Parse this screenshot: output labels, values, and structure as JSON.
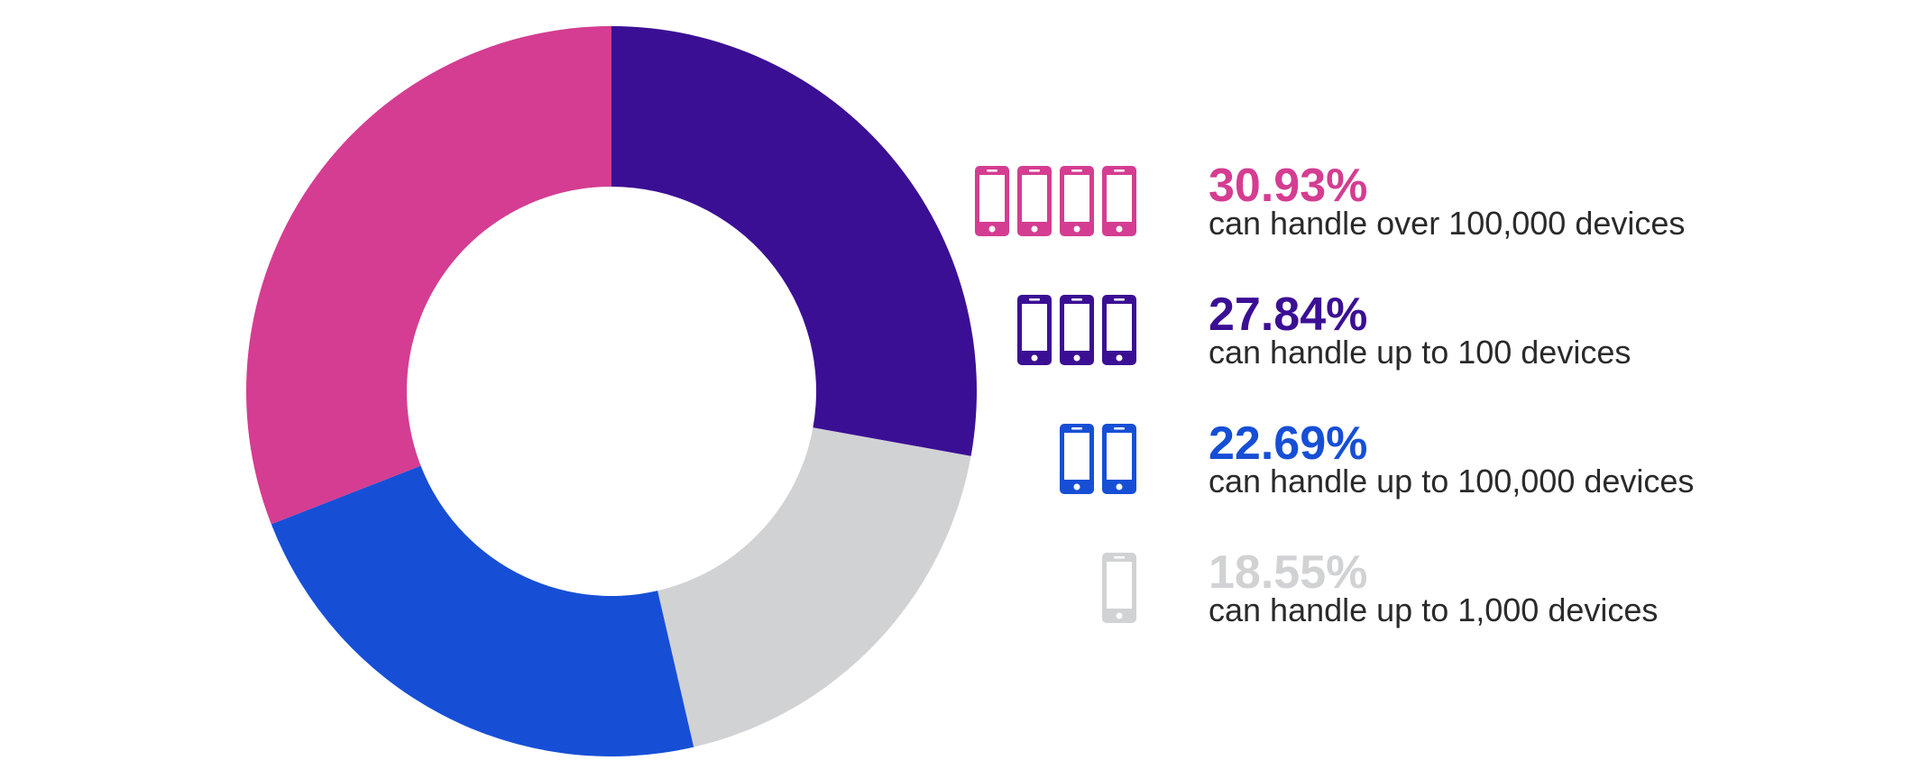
{
  "chart_data": {
    "type": "pie",
    "donut": true,
    "start_angle_deg": 0,
    "direction": "clockwise",
    "slices": [
      {
        "label": "can handle up to 100 devices",
        "value": 27.84,
        "color": "#3b0f94"
      },
      {
        "label": "can handle up to 1,000 devices",
        "value": 18.55,
        "color": "#d1d2d4"
      },
      {
        "label": "can handle up to 100,000 devices",
        "value": 22.69,
        "color": "#164fd6"
      },
      {
        "label": "can handle over 100,000 devices",
        "value": 30.93,
        "color": "#d43d91"
      }
    ],
    "legend": [
      {
        "percent": "30.93%",
        "description": "can handle over 100,000 devices",
        "color": "#d43d91",
        "icon": "phone-icon",
        "icon_count": 4
      },
      {
        "percent": "27.84%",
        "description": "can handle up to 100 devices",
        "color": "#3b0f94",
        "icon": "phone-icon",
        "icon_count": 3
      },
      {
        "percent": "22.69%",
        "description": "can handle up to 100,000 devices",
        "color": "#164fd6",
        "icon": "phone-icon",
        "icon_count": 2
      },
      {
        "percent": "18.55%",
        "description": "can handle up to 1,000 devices",
        "color": "#d1d2d4",
        "icon": "phone-icon",
        "icon_count": 1
      }
    ]
  }
}
